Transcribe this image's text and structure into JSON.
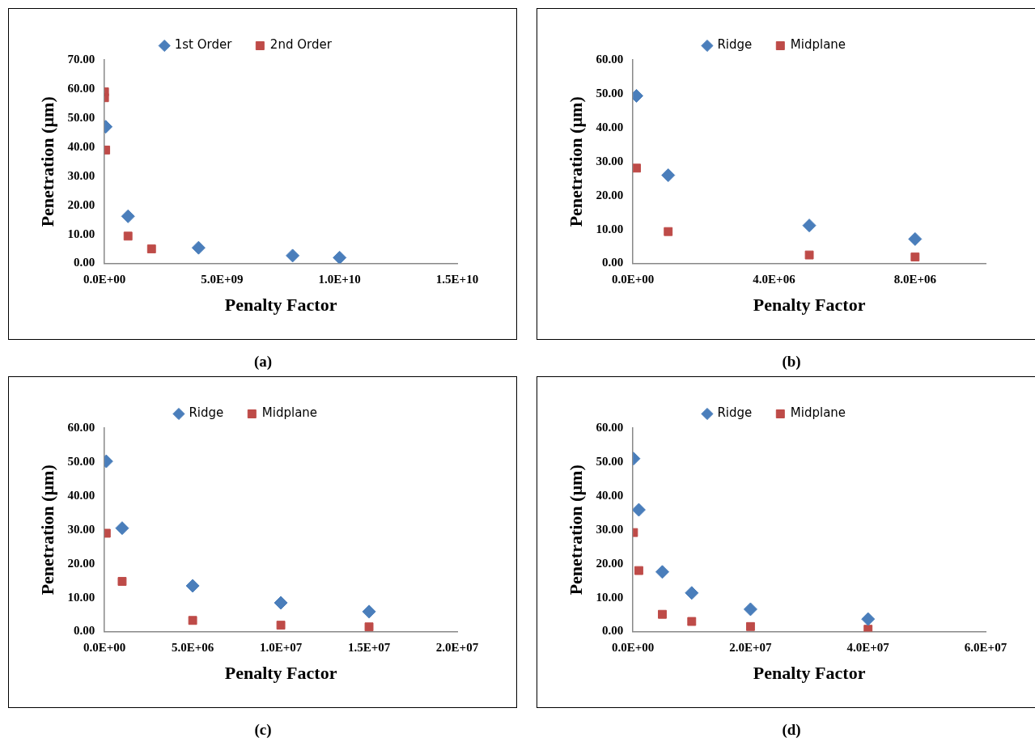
{
  "chart_data": [
    {
      "type": "scatter",
      "xlabel": "Penalty Factor",
      "ylabel": "Penetration (µm)",
      "legend": "top",
      "grid": false,
      "annotations": [
        "(a)"
      ],
      "xlim": [
        0,
        15000000000
      ],
      "xticks": [
        {
          "value": 0,
          "label": "0.0E+00"
        },
        {
          "value": 5000000000,
          "label": "5.0E+09"
        },
        {
          "value": 10000000000,
          "label": "1.0E+10"
        },
        {
          "value": 15000000000,
          "label": "1.5E+10"
        }
      ],
      "ylim": [
        0,
        70
      ],
      "yticks": [
        {
          "value": 0,
          "label": "0.00"
        },
        {
          "value": 10,
          "label": "10.00"
        },
        {
          "value": 20,
          "label": "20.00"
        },
        {
          "value": 30,
          "label": "30.00"
        },
        {
          "value": 40,
          "label": "40.00"
        },
        {
          "value": 50,
          "label": "50.00"
        },
        {
          "value": 60,
          "label": "60.00"
        },
        {
          "value": 70,
          "label": "70.00"
        }
      ],
      "series": [
        {
          "name": "1st Order",
          "color": "#4a7ebb",
          "marker": "diamond",
          "x": [
            50000000,
            1000000000,
            4000000000,
            8000000000,
            10000000000
          ],
          "values": [
            47,
            16.2,
            5.4,
            2.7,
            2.0
          ]
        },
        {
          "name": "2nd Order",
          "color": "#be4b48",
          "marker": "square",
          "x": [
            0,
            0,
            50000000,
            1000000000,
            2000000000
          ],
          "values": [
            59,
            57,
            39,
            9.4,
            5.0
          ]
        }
      ]
    },
    {
      "type": "scatter",
      "xlabel": "Penalty Factor",
      "ylabel": "Penetration (µm)",
      "legend": "top",
      "grid": false,
      "annotations": [
        "(b)"
      ],
      "xlim": [
        0,
        10000000
      ],
      "xticks": [
        {
          "value": 0,
          "label": "0.0E+00"
        },
        {
          "value": 4000000,
          "label": "4.0E+06"
        },
        {
          "value": 8000000,
          "label": "8.0E+06"
        }
      ],
      "ylim": [
        0,
        60
      ],
      "yticks": [
        {
          "value": 0,
          "label": "0.00"
        },
        {
          "value": 10,
          "label": "10.00"
        },
        {
          "value": 20,
          "label": "20.00"
        },
        {
          "value": 30,
          "label": "30.00"
        },
        {
          "value": 40,
          "label": "40.00"
        },
        {
          "value": 50,
          "label": "50.00"
        },
        {
          "value": 60,
          "label": "60.00"
        }
      ],
      "series": [
        {
          "name": "Ridge",
          "color": "#4a7ebb",
          "marker": "diamond",
          "x": [
            100000,
            1000000,
            5000000,
            8000000
          ],
          "values": [
            49.4,
            26.0,
            11.2,
            7.2
          ]
        },
        {
          "name": "Midplane",
          "color": "#be4b48",
          "marker": "square",
          "x": [
            100000,
            1000000,
            5000000,
            8000000
          ],
          "values": [
            28.1,
            9.4,
            2.5,
            1.9
          ]
        }
      ]
    },
    {
      "type": "scatter",
      "xlabel": "Penalty Factor",
      "ylabel": "Penetration (µm)",
      "legend": "top",
      "grid": false,
      "annotations": [
        "(c)"
      ],
      "xlim": [
        0,
        20000000
      ],
      "xticks": [
        {
          "value": 0,
          "label": "0.0E+00"
        },
        {
          "value": 5000000,
          "label": "5.0E+06"
        },
        {
          "value": 10000000,
          "label": "1.0E+07"
        },
        {
          "value": 15000000,
          "label": "1.5E+07"
        },
        {
          "value": 20000000,
          "label": "2.0E+07"
        }
      ],
      "ylim": [
        0,
        60
      ],
      "yticks": [
        {
          "value": 0,
          "label": "0.00"
        },
        {
          "value": 10,
          "label": "10.00"
        },
        {
          "value": 20,
          "label": "20.00"
        },
        {
          "value": 30,
          "label": "30.00"
        },
        {
          "value": 40,
          "label": "40.00"
        },
        {
          "value": 50,
          "label": "50.00"
        },
        {
          "value": 60,
          "label": "60.00"
        }
      ],
      "series": [
        {
          "name": "Ridge",
          "color": "#4a7ebb",
          "marker": "diamond",
          "x": [
            100000,
            1000000,
            5000000,
            10000000,
            15000000
          ],
          "values": [
            50.2,
            30.5,
            13.5,
            8.5,
            5.9
          ]
        },
        {
          "name": "Midplane",
          "color": "#be4b48",
          "marker": "square",
          "x": [
            100000,
            1000000,
            5000000,
            10000000,
            15000000
          ],
          "values": [
            29.0,
            14.8,
            3.3,
            1.9,
            1.4
          ]
        }
      ]
    },
    {
      "type": "scatter",
      "xlabel": "Penalty Factor",
      "ylabel": "Penetration (µm)",
      "legend": "top",
      "grid": false,
      "annotations": [
        "(d)"
      ],
      "xlim": [
        0,
        60000000
      ],
      "xticks": [
        {
          "value": 0,
          "label": "0.0E+00"
        },
        {
          "value": 20000000,
          "label": "2.0E+07"
        },
        {
          "value": 40000000,
          "label": "4.0E+07"
        },
        {
          "value": 60000000,
          "label": "6.0E+07"
        }
      ],
      "ylim": [
        0,
        60
      ],
      "yticks": [
        {
          "value": 0,
          "label": "0.00"
        },
        {
          "value": 10,
          "label": "10.00"
        },
        {
          "value": 20,
          "label": "20.00"
        },
        {
          "value": 30,
          "label": "30.00"
        },
        {
          "value": 40,
          "label": "40.00"
        },
        {
          "value": 50,
          "label": "50.00"
        },
        {
          "value": 60,
          "label": "60.00"
        }
      ],
      "series": [
        {
          "name": "Ridge",
          "color": "#4a7ebb",
          "marker": "diamond",
          "x": [
            100000,
            1000000,
            5000000,
            10000000,
            20000000,
            40000000
          ],
          "values": [
            51.0,
            35.9,
            17.6,
            11.4,
            6.6,
            3.7
          ]
        },
        {
          "name": "Midplane",
          "color": "#be4b48",
          "marker": "square",
          "x": [
            100000,
            1000000,
            5000000,
            10000000,
            20000000,
            40000000
          ],
          "values": [
            29.2,
            18.0,
            5.1,
            3.0,
            1.5,
            0.7
          ]
        }
      ]
    }
  ]
}
